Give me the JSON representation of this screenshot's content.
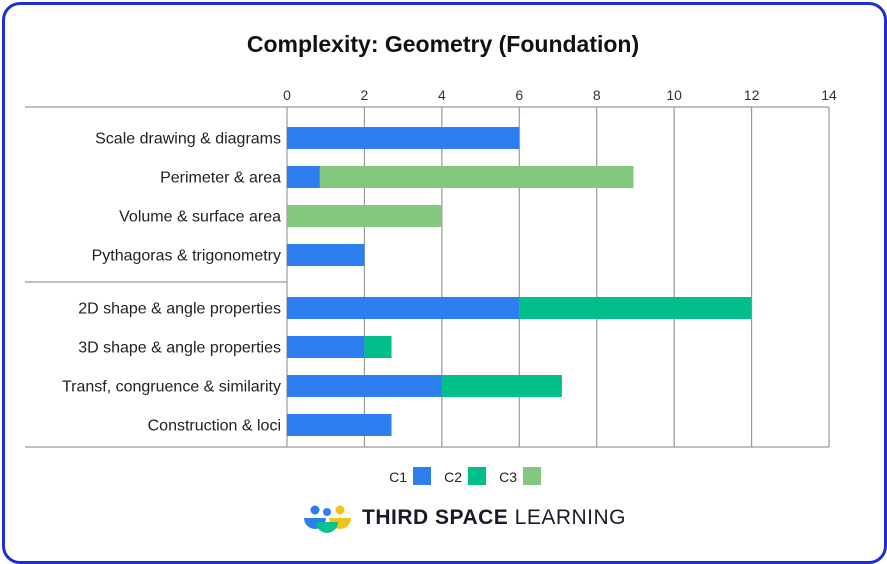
{
  "colors": {
    "frame": "#1f2fcf",
    "C1": "#2d7ff0",
    "C2": "#00bf8a",
    "C3": "#84c880",
    "grid": "#9a9a9a"
  },
  "brand": {
    "strong": "THIRD SPACE",
    "light": "LEARNING",
    "logo_icon": "third-space-learning-logo"
  },
  "chart_data": {
    "type": "bar",
    "orientation": "horizontal",
    "stacked": true,
    "title": "Complexity: Geometry (Foundation)",
    "xlabel": "",
    "ylabel": "",
    "xlim": [
      0,
      14
    ],
    "xticks": [
      0,
      2,
      4,
      6,
      8,
      10,
      12,
      14
    ],
    "x_axis_position": "top",
    "grid": true,
    "legend_position": "bottom",
    "categories": [
      "Scale drawing & diagrams",
      "Perimeter & area",
      "Volume & surface area",
      "Pythagoras & trigonometry",
      "2D shape & angle properties",
      "3D shape & angle properties",
      "Transf, congruence & similarity",
      "Construction & loci"
    ],
    "group_separator_after_index": 3,
    "series": [
      {
        "name": "C1",
        "values": [
          6,
          0.85,
          0,
          2,
          6,
          2,
          4,
          2.7
        ]
      },
      {
        "name": "C2",
        "values": [
          0,
          0,
          0,
          0,
          6,
          0.7,
          3.1,
          0
        ]
      },
      {
        "name": "C3",
        "values": [
          0,
          8.1,
          4,
          0,
          0,
          0,
          0,
          0
        ]
      }
    ]
  }
}
